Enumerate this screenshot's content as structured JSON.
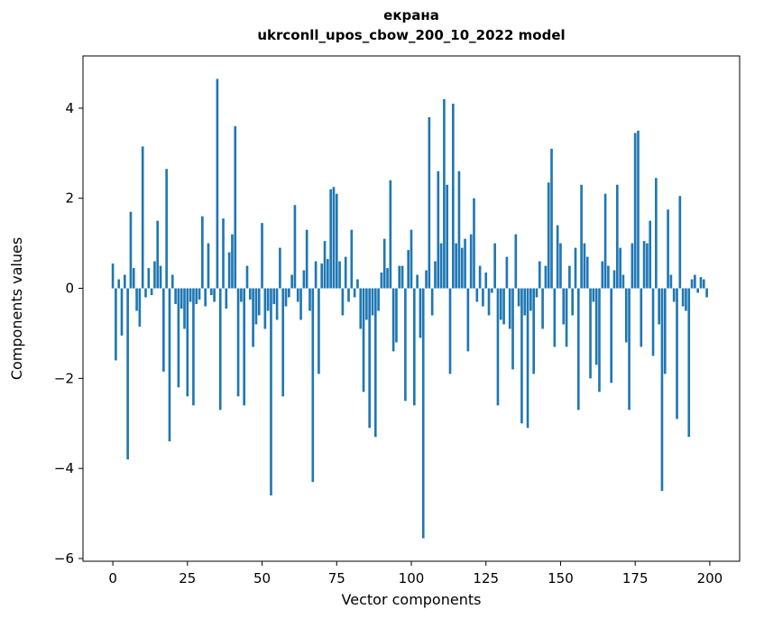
{
  "title": {
    "line1": "екрана",
    "line2": "ukrconll_upos_cbow_200_10_2022 model"
  },
  "chart_data": {
    "type": "bar",
    "title": "екрана\nukrconll_upos_cbow_200_10_2022 model",
    "xlabel": "Vector components",
    "ylabel": "Components values",
    "bar_color": "#1f77b4",
    "legend": "none",
    "grid": false,
    "xlim": [
      -10,
      210
    ],
    "ylim": [
      -6.06,
      5.16
    ],
    "xticks": [
      0,
      25,
      50,
      75,
      100,
      125,
      150,
      175,
      200
    ],
    "yticks": [
      -6,
      -4,
      -2,
      0,
      2,
      4
    ],
    "x_start": 0,
    "values": [
      0.55,
      -1.6,
      0.2,
      -1.05,
      0.3,
      -3.8,
      1.7,
      0.45,
      -0.5,
      -0.85,
      3.15,
      -0.2,
      0.45,
      -0.15,
      0.6,
      1.5,
      0.5,
      -1.85,
      2.65,
      -3.4,
      0.3,
      -0.35,
      -2.2,
      -0.45,
      -0.9,
      -2.4,
      -0.3,
      -2.6,
      -0.35,
      -0.25,
      1.6,
      -0.4,
      1.0,
      -0.15,
      -0.3,
      4.65,
      -2.7,
      1.55,
      -0.45,
      0.8,
      1.2,
      3.6,
      -2.4,
      -0.3,
      -2.6,
      0.5,
      -0.25,
      -1.3,
      -0.8,
      -0.6,
      1.45,
      -0.9,
      -0.5,
      -4.6,
      -0.35,
      -0.7,
      0.9,
      -2.4,
      -0.4,
      -0.2,
      0.3,
      1.85,
      -0.3,
      -0.7,
      0.4,
      1.3,
      -0.5,
      -4.3,
      0.6,
      -1.9,
      0.55,
      1.05,
      0.65,
      2.2,
      2.25,
      2.1,
      0.6,
      -0.6,
      0.7,
      -0.3,
      1.3,
      -0.2,
      0.2,
      -0.9,
      -2.3,
      -0.7,
      -3.1,
      -0.6,
      -3.3,
      -0.5,
      0.35,
      1.1,
      0.45,
      2.4,
      -1.4,
      -1.2,
      0.5,
      0.5,
      -2.5,
      0.85,
      1.3,
      -2.6,
      0.3,
      -1.1,
      -5.55,
      0.4,
      3.8,
      -0.6,
      0.6,
      2.6,
      1.0,
      4.2,
      2.3,
      -1.9,
      4.1,
      1.0,
      2.6,
      0.9,
      1.1,
      -1.4,
      1.2,
      2.0,
      -0.3,
      0.5,
      -0.4,
      0.35,
      -0.6,
      -0.1,
      1.0,
      -2.6,
      -0.7,
      -0.8,
      0.7,
      -0.9,
      -1.8,
      1.2,
      -0.4,
      -3.0,
      -0.6,
      -3.1,
      -0.5,
      -1.9,
      -0.2,
      0.6,
      -0.9,
      0.5,
      2.35,
      3.1,
      -1.3,
      1.4,
      1.0,
      -0.8,
      -1.3,
      0.5,
      -0.6,
      0.9,
      -2.7,
      2.3,
      1.0,
      0.7,
      -2.0,
      -0.3,
      -1.7,
      -2.3,
      0.6,
      2.1,
      0.5,
      -2.1,
      0.4,
      2.3,
      0.9,
      0.3,
      -1.2,
      -2.7,
      1.0,
      3.45,
      3.5,
      -1.3,
      1.05,
      1.0,
      1.5,
      -1.5,
      2.45,
      -0.8,
      -4.5,
      -1.9,
      1.75,
      0.3,
      -0.3,
      -2.9,
      2.05,
      -0.4,
      -0.5,
      -3.3,
      0.2,
      0.3,
      -0.1,
      0.25,
      0.2,
      -0.2
    ]
  }
}
